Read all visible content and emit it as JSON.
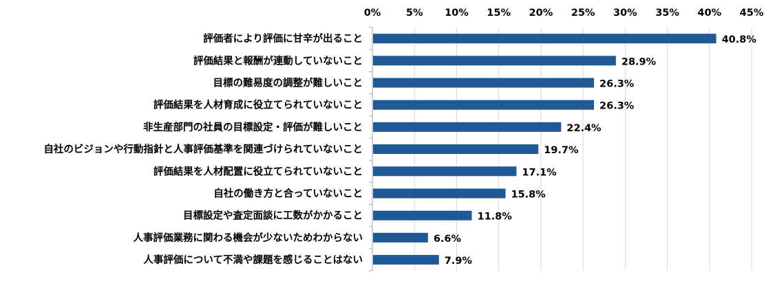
{
  "chart_data": {
    "type": "bar",
    "orientation": "horizontal",
    "title": "",
    "xlabel": "",
    "ylabel": "",
    "xlim": [
      0,
      45
    ],
    "tick_step": 5,
    "tick_labels": [
      "0%",
      "5%",
      "10%",
      "15%",
      "20%",
      "25%",
      "30%",
      "35%",
      "40%",
      "45%"
    ],
    "x_axis_position": "top",
    "grid": true,
    "legend": "none",
    "bar_color": "#1f5a96",
    "categories": [
      "評価者により評価に甘辛が出ること",
      "評価結果と報酬が連動していないこと",
      "目標の難易度の調整が難しいこと",
      "評価結果を人材育成に役立てられていないこと",
      "非生産部門の社員の目標設定・評価が難しいこと",
      "自社のビジョンや行動指針と人事評価基準を関連づけられていないこと",
      "評価結果を人材配置に役立てられていないこと",
      "自社の働き方と合っていないこと",
      "目標設定や査定面談に工数がかかること",
      "人事評価業務に関わる機会が少ないためわからない",
      "人事評価について不満や課題を感じることはない"
    ],
    "values": [
      40.8,
      28.9,
      26.3,
      26.3,
      22.4,
      19.7,
      17.1,
      15.8,
      11.8,
      6.6,
      7.9
    ],
    "data_labels": [
      "40.8%",
      "28.9%",
      "26.3%",
      "26.3%",
      "22.4%",
      "19.7%",
      "17.1%",
      "15.8%",
      "11.8%",
      "6.6%",
      "7.9%"
    ]
  }
}
